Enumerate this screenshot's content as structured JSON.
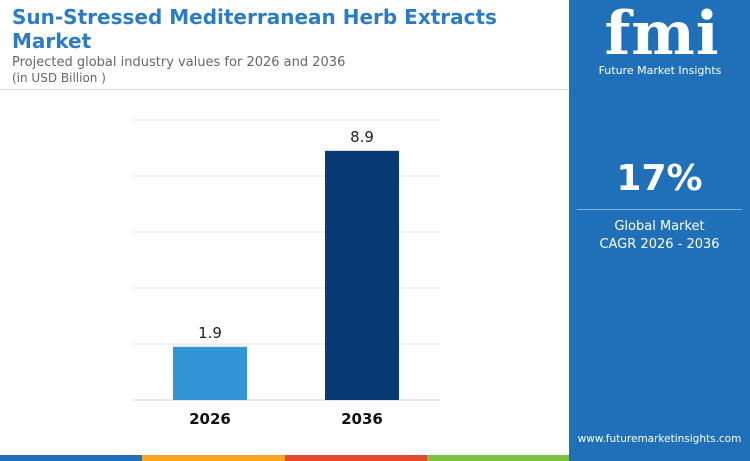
{
  "header": {
    "title": "Sun-Stressed Mediterranean Herb Extracts Market",
    "subtitle": "Projected global industry values for 2026 and 2036",
    "unit": "(in USD Billion )"
  },
  "chart_data": {
    "type": "bar",
    "categories": [
      "2026",
      "2036"
    ],
    "values": [
      1.9,
      8.9
    ],
    "value_labels": [
      "1.9",
      "8.9"
    ],
    "colors": [
      "#3394d6",
      "#0a3a73"
    ],
    "ylim": [
      0,
      10
    ],
    "grid": true,
    "title": "",
    "xlabel": "",
    "ylabel": ""
  },
  "sidebar": {
    "logo": "fmi",
    "brand": "Future Market Insights",
    "cagr_value": "17%",
    "cagr_label_1": "Global Market",
    "cagr_label_2": "CAGR 2026 - 2036",
    "website": "www.futuremarketinsights.com",
    "background_color": "#1f70b8"
  },
  "accent_colors": [
    "#1f70b8",
    "#f5a623",
    "#e04a2f",
    "#7dc142"
  ]
}
